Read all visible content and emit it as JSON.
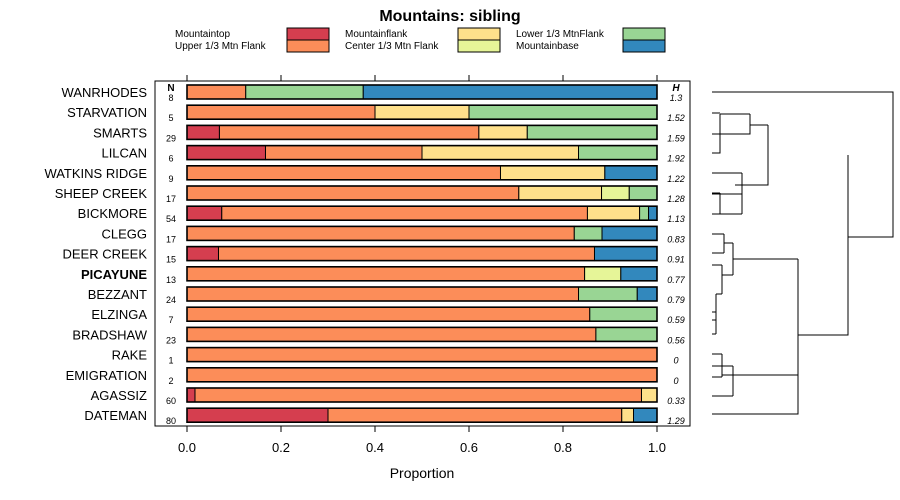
{
  "chart_data": {
    "type": "bar",
    "orientation": "horizontal-stacked",
    "title": "Mountains: sibling",
    "xlabel": "Proportion",
    "xlim": [
      0,
      1
    ],
    "x_ticks": [
      "0.0",
      "0.2",
      "0.4",
      "0.6",
      "0.8",
      "1.0"
    ],
    "n_header": "N",
    "h_header": "H",
    "legend_position": "top",
    "series": [
      {
        "name": "Mountaintop",
        "color": "#d53e4f"
      },
      {
        "name": "Upper 1/3 Mtn Flank",
        "color": "#fc8d59"
      },
      {
        "name": "Mountainflank",
        "color": "#fee08b"
      },
      {
        "name": "Center 1/3 Mtn Flank",
        "color": "#e6f598"
      },
      {
        "name": "Lower 1/3 MtnFlank",
        "color": "#99d594"
      },
      {
        "name": "Mountainbase",
        "color": "#3288bd"
      }
    ],
    "legend_order": [
      0,
      2,
      4,
      1,
      3,
      5
    ],
    "rows": [
      {
        "name": "WANRHODES",
        "n": "8",
        "h": "1.3",
        "bold": false,
        "values": [
          0,
          0.125,
          0,
          0,
          0.25,
          0.625
        ]
      },
      {
        "name": "STARVATION",
        "n": "5",
        "h": "1.52",
        "bold": false,
        "values": [
          0,
          0.4,
          0.2,
          0,
          0.4,
          0
        ]
      },
      {
        "name": "SMARTS",
        "n": "29",
        "h": "1.59",
        "bold": false,
        "values": [
          0.069,
          0.552,
          0.103,
          0,
          0.276,
          0
        ]
      },
      {
        "name": "LILCAN",
        "n": "6",
        "h": "1.92",
        "bold": false,
        "values": [
          0.167,
          0.333,
          0.333,
          0,
          0.167,
          0
        ]
      },
      {
        "name": "WATKINS RIDGE",
        "n": "9",
        "h": "1.22",
        "bold": false,
        "values": [
          0,
          0.667,
          0.222,
          0,
          0,
          0.111
        ]
      },
      {
        "name": "SHEEP CREEK",
        "n": "17",
        "h": "1.28",
        "bold": false,
        "values": [
          0,
          0.706,
          0.176,
          0.059,
          0.059,
          0
        ]
      },
      {
        "name": "BICKMORE",
        "n": "54",
        "h": "1.13",
        "bold": false,
        "values": [
          0.074,
          0.778,
          0.111,
          0,
          0.019,
          0.019
        ]
      },
      {
        "name": "CLEGG",
        "n": "17",
        "h": "0.83",
        "bold": false,
        "values": [
          0,
          0.824,
          0,
          0,
          0.059,
          0.118
        ]
      },
      {
        "name": "DEER CREEK",
        "n": "15",
        "h": "0.91",
        "bold": false,
        "values": [
          0.067,
          0.8,
          0,
          0,
          0,
          0.133
        ]
      },
      {
        "name": "PICAYUNE",
        "n": "13",
        "h": "0.77",
        "bold": true,
        "values": [
          0,
          0.846,
          0,
          0.077,
          0,
          0.077
        ]
      },
      {
        "name": "BEZZANT",
        "n": "24",
        "h": "0.79",
        "bold": false,
        "values": [
          0,
          0.833,
          0,
          0,
          0.125,
          0.042
        ]
      },
      {
        "name": "ELZINGA",
        "n": "7",
        "h": "0.59",
        "bold": false,
        "values": [
          0,
          0.857,
          0,
          0,
          0.143,
          0
        ]
      },
      {
        "name": "BRADSHAW",
        "n": "23",
        "h": "0.56",
        "bold": false,
        "values": [
          0,
          0.87,
          0,
          0,
          0.13,
          0
        ]
      },
      {
        "name": "RAKE",
        "n": "1",
        "h": "0",
        "bold": false,
        "values": [
          0,
          1,
          0,
          0,
          0,
          0
        ]
      },
      {
        "name": "EMIGRATION",
        "n": "2",
        "h": "0",
        "bold": false,
        "values": [
          0,
          1,
          0,
          0,
          0,
          0
        ]
      },
      {
        "name": "AGASSIZ",
        "n": "60",
        "h": "0.33",
        "bold": false,
        "values": [
          0.017,
          0.95,
          0.033,
          0,
          0,
          0
        ]
      },
      {
        "name": "DATEMAN",
        "n": "80",
        "h": "1.29",
        "bold": false,
        "values": [
          0.3,
          0.625,
          0.025,
          0,
          0,
          0.05
        ]
      }
    ]
  }
}
